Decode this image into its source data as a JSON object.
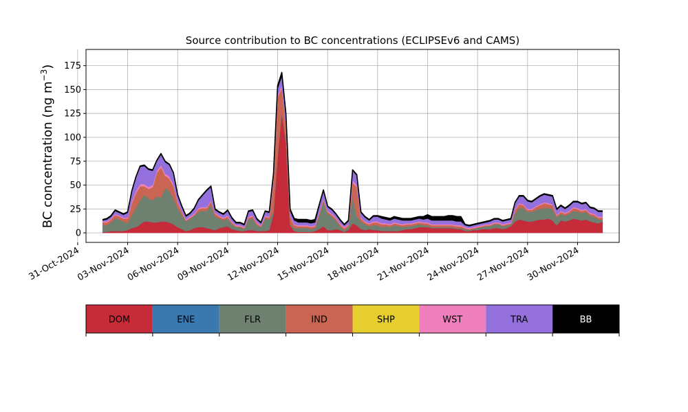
{
  "chart_data": {
    "type": "area",
    "title": "Source contribution to BC concentrations (ECLIPSEv6 and CAMS)",
    "xlabel": "",
    "ylabel": "BC concentration (ng m",
    "ylabel_superscript": "−3",
    "ylabel_suffix": ")",
    "xlim": [
      "2024-10-31T12:00",
      "2024-12-02T12:00"
    ],
    "ylim": [
      -10,
      192
    ],
    "y_ticks": [
      0,
      25,
      50,
      75,
      100,
      125,
      150,
      175
    ],
    "x_ticks": [
      "31-Oct-2024",
      "03-Nov-2024",
      "06-Nov-2024",
      "09-Nov-2024",
      "12-Nov-2024",
      "15-Nov-2024",
      "18-Nov-2024",
      "21-Nov-2024",
      "24-Nov-2024",
      "27-Nov-2024",
      "30-Nov-2024"
    ],
    "grid": true,
    "stacked": true,
    "legend_placement": "below",
    "x": [
      "2024-11-01T12:00",
      "2024-11-01T18:00",
      "2024-11-02T00:00",
      "2024-11-02T06:00",
      "2024-11-02T12:00",
      "2024-11-02T18:00",
      "2024-11-03T00:00",
      "2024-11-03T06:00",
      "2024-11-03T12:00",
      "2024-11-03T18:00",
      "2024-11-04T00:00",
      "2024-11-04T06:00",
      "2024-11-04T12:00",
      "2024-11-04T18:00",
      "2024-11-05T00:00",
      "2024-11-05T06:00",
      "2024-11-05T12:00",
      "2024-11-05T18:00",
      "2024-11-06T00:00",
      "2024-11-06T06:00",
      "2024-11-06T12:00",
      "2024-11-06T18:00",
      "2024-11-07T00:00",
      "2024-11-07T06:00",
      "2024-11-07T12:00",
      "2024-11-07T18:00",
      "2024-11-08T00:00",
      "2024-11-08T06:00",
      "2024-11-08T12:00",
      "2024-11-08T18:00",
      "2024-11-09T00:00",
      "2024-11-09T06:00",
      "2024-11-09T12:00",
      "2024-11-09T18:00",
      "2024-11-10T00:00",
      "2024-11-10T06:00",
      "2024-11-10T12:00",
      "2024-11-10T18:00",
      "2024-11-11T00:00",
      "2024-11-11T06:00",
      "2024-11-11T12:00",
      "2024-11-11T18:00",
      "2024-11-12T00:00",
      "2024-11-12T06:00",
      "2024-11-12T12:00",
      "2024-11-12T18:00",
      "2024-11-13T00:00",
      "2024-11-13T06:00",
      "2024-11-13T12:00",
      "2024-11-13T18:00",
      "2024-11-14T00:00",
      "2024-11-14T06:00",
      "2024-11-14T12:00",
      "2024-11-14T18:00",
      "2024-11-15T00:00",
      "2024-11-15T06:00",
      "2024-11-15T12:00",
      "2024-11-15T18:00",
      "2024-11-16T00:00",
      "2024-11-16T06:00",
      "2024-11-16T12:00",
      "2024-11-16T18:00",
      "2024-11-17T00:00",
      "2024-11-17T06:00",
      "2024-11-17T12:00",
      "2024-11-17T18:00",
      "2024-11-18T00:00",
      "2024-11-18T06:00",
      "2024-11-18T12:00",
      "2024-11-18T18:00",
      "2024-11-19T00:00",
      "2024-11-19T06:00",
      "2024-11-19T12:00",
      "2024-11-19T18:00",
      "2024-11-20T00:00",
      "2024-11-20T06:00",
      "2024-11-20T12:00",
      "2024-11-20T18:00",
      "2024-11-21T00:00",
      "2024-11-21T06:00",
      "2024-11-21T12:00",
      "2024-11-21T18:00",
      "2024-11-22T00:00",
      "2024-11-22T06:00",
      "2024-11-22T12:00",
      "2024-11-22T18:00",
      "2024-11-23T00:00",
      "2024-11-23T06:00",
      "2024-11-23T12:00",
      "2024-11-23T18:00",
      "2024-11-24T00:00",
      "2024-11-24T06:00",
      "2024-11-24T12:00",
      "2024-11-24T18:00",
      "2024-11-25T00:00",
      "2024-11-25T06:00",
      "2024-11-25T12:00",
      "2024-11-25T18:00",
      "2024-11-26T00:00",
      "2024-11-26T06:00",
      "2024-11-26T12:00",
      "2024-11-26T18:00",
      "2024-11-27T00:00",
      "2024-11-27T06:00",
      "2024-11-27T12:00",
      "2024-11-27T18:00",
      "2024-11-28T00:00",
      "2024-11-28T06:00",
      "2024-11-28T12:00",
      "2024-11-28T18:00",
      "2024-11-29T00:00",
      "2024-11-29T06:00",
      "2024-11-29T12:00",
      "2024-11-29T18:00",
      "2024-11-30T00:00",
      "2024-11-30T06:00",
      "2024-11-30T12:00",
      "2024-11-30T18:00",
      "2024-12-01T00:00",
      "2024-12-01T06:00",
      "2024-12-01T12:00"
    ],
    "series": [
      {
        "name": "DOM",
        "color": "#C62B3A",
        "values": [
          1,
          1,
          2,
          2,
          2,
          2,
          3,
          5,
          6,
          9,
          12,
          12,
          11,
          11,
          12,
          12,
          11,
          9,
          6,
          4,
          2,
          3,
          5,
          6,
          6,
          5,
          4,
          3,
          5,
          6,
          7,
          4,
          3,
          2,
          2,
          3,
          3,
          2,
          2,
          2,
          3,
          20,
          80,
          125,
          95,
          8,
          2,
          1,
          1,
          1,
          1,
          2,
          4,
          7,
          3,
          3,
          4,
          3,
          1,
          3,
          10,
          8,
          4,
          3,
          4,
          3,
          3,
          2,
          2,
          2,
          2,
          2,
          3,
          4,
          4,
          5,
          6,
          6,
          6,
          5,
          5,
          5,
          5,
          5,
          5,
          4,
          4,
          2,
          2,
          3,
          3,
          4,
          4,
          4,
          5,
          5,
          4,
          5,
          7,
          12,
          14,
          13,
          12,
          12,
          13,
          14,
          14,
          15,
          13,
          8,
          13,
          12,
          13,
          15,
          14,
          13,
          14,
          12,
          11,
          10,
          12
        ]
      },
      {
        "name": "ENE",
        "color": "#3A78B0",
        "values": [
          0,
          0,
          0,
          0,
          0,
          0,
          0,
          0,
          0,
          0,
          0,
          0,
          0,
          0,
          0,
          0,
          0,
          0,
          0,
          0,
          0,
          0,
          0,
          0,
          0,
          0,
          0,
          0,
          0,
          0,
          0,
          0,
          0,
          0,
          0,
          0,
          0,
          0,
          0,
          0,
          0,
          0,
          0,
          0,
          0,
          0,
          0,
          0,
          0,
          0,
          0,
          0,
          0,
          0,
          0,
          0,
          0,
          0,
          0,
          0,
          0,
          0,
          0,
          0,
          0,
          0,
          0,
          0,
          0,
          0,
          0,
          0,
          0,
          0,
          0,
          0,
          0,
          0,
          0,
          0,
          0,
          0,
          0,
          0,
          0,
          0,
          0,
          0,
          0,
          0,
          0,
          0,
          0,
          0,
          0,
          0,
          0,
          0,
          0,
          0,
          0,
          0,
          0,
          0,
          0,
          0,
          0,
          0,
          0,
          0,
          0,
          0,
          0,
          0,
          0,
          0,
          0,
          0,
          0,
          0,
          0
        ]
      },
      {
        "name": "FLR",
        "color": "#6E8070",
        "values": [
          7,
          7,
          9,
          13,
          12,
          10,
          7,
          14,
          20,
          25,
          28,
          24,
          23,
          27,
          25,
          35,
          33,
          27,
          20,
          15,
          10,
          12,
          13,
          16,
          17,
          18,
          25,
          14,
          10,
          7,
          8,
          5,
          3,
          4,
          2,
          11,
          12,
          6,
          4,
          13,
          11,
          3,
          2,
          2,
          2,
          1,
          3,
          4,
          4,
          4,
          3,
          3,
          14,
          26,
          17,
          14,
          9,
          4,
          2,
          3,
          28,
          10,
          8,
          6,
          3,
          5,
          5,
          4,
          5,
          4,
          6,
          5,
          3,
          3,
          3,
          3,
          3,
          2,
          2,
          1,
          1,
          1,
          1,
          1,
          1,
          1,
          1,
          2,
          1,
          1,
          2,
          2,
          3,
          3,
          4,
          4,
          3,
          3,
          2,
          8,
          12,
          13,
          10,
          10,
          11,
          11,
          12,
          11,
          12,
          8,
          7,
          6,
          7,
          8,
          8,
          8,
          8,
          6,
          6,
          4,
          2
        ]
      },
      {
        "name": "IND",
        "color": "#C96552",
        "values": [
          3,
          3,
          3,
          4,
          3,
          3,
          5,
          12,
          16,
          15,
          9,
          10,
          14,
          25,
          32,
          13,
          13,
          13,
          6,
          3,
          1,
          1,
          1,
          3,
          3,
          3,
          4,
          3,
          2,
          2,
          2,
          2,
          1,
          1,
          1,
          2,
          2,
          2,
          1,
          2,
          2,
          30,
          60,
          25,
          15,
          8,
          3,
          2,
          2,
          2,
          2,
          2,
          3,
          2,
          2,
          2,
          2,
          2,
          2,
          2,
          15,
          30,
          3,
          2,
          2,
          3,
          3,
          3,
          2,
          2,
          2,
          2,
          2,
          2,
          2,
          2,
          2,
          2,
          2,
          2,
          2,
          2,
          2,
          2,
          2,
          2,
          2,
          1,
          1,
          1,
          1,
          1,
          1,
          1,
          1,
          1,
          1,
          1,
          1,
          4,
          4,
          3,
          2,
          2,
          3,
          4,
          5,
          4,
          4,
          2,
          2,
          2,
          2,
          3,
          3,
          2,
          2,
          2,
          2,
          2,
          2
        ]
      },
      {
        "name": "SHP",
        "color": "#E6CE2F",
        "values": [
          0,
          0,
          0,
          0,
          0,
          0,
          0,
          0,
          0,
          0,
          0,
          0,
          0,
          0,
          0,
          0,
          0,
          0,
          0,
          0,
          0,
          0,
          0,
          0,
          0,
          0,
          0,
          0,
          0,
          0,
          0,
          0,
          0,
          0,
          0,
          0,
          0,
          0,
          0,
          0,
          0,
          0,
          0,
          0,
          0,
          0,
          0,
          0,
          0,
          0,
          0,
          0,
          0,
          0,
          0,
          0,
          0,
          0,
          0,
          0,
          0,
          0,
          0,
          0,
          0,
          0,
          0,
          0,
          0,
          0,
          0,
          0,
          0,
          0,
          0,
          0,
          0,
          0,
          0,
          0,
          0,
          0,
          0,
          0,
          0,
          0,
          0,
          0,
          0,
          0,
          0,
          0,
          0,
          0,
          0,
          0,
          0,
          0,
          0,
          0,
          0,
          0,
          0,
          0,
          0,
          0,
          0,
          0,
          0,
          0,
          0,
          0,
          0,
          0,
          0,
          0,
          0,
          0,
          0,
          0,
          0
        ]
      },
      {
        "name": "WST",
        "color": "#F07FBD",
        "values": [
          1,
          1,
          1,
          1,
          1,
          1,
          1,
          2,
          2,
          2,
          2,
          2,
          2,
          2,
          2,
          2,
          2,
          2,
          1,
          1,
          1,
          1,
          1,
          1,
          1,
          1,
          1,
          1,
          1,
          1,
          1,
          1,
          1,
          1,
          1,
          1,
          1,
          1,
          1,
          1,
          1,
          2,
          2,
          2,
          2,
          1,
          1,
          1,
          1,
          1,
          1,
          1,
          1,
          1,
          1,
          1,
          1,
          1,
          1,
          1,
          2,
          2,
          1,
          1,
          1,
          1,
          1,
          1,
          1,
          1,
          1,
          1,
          1,
          1,
          1,
          1,
          1,
          1,
          1,
          1,
          1,
          1,
          1,
          1,
          1,
          1,
          1,
          1,
          1,
          1,
          1,
          1,
          1,
          1,
          1,
          1,
          1,
          1,
          1,
          1,
          1,
          1,
          1,
          1,
          1,
          1,
          1,
          1,
          1,
          1,
          1,
          1,
          1,
          1,
          1,
          1,
          1,
          1,
          1,
          1,
          1
        ]
      },
      {
        "name": "TRA",
        "color": "#9370DB",
        "values": [
          1,
          2,
          2,
          3,
          3,
          3,
          5,
          10,
          14,
          18,
          19,
          18,
          15,
          10,
          11,
          12,
          12,
          11,
          6,
          4,
          3,
          3,
          5,
          8,
          12,
          17,
          14,
          3,
          3,
          3,
          5,
          3,
          2,
          2,
          2,
          5,
          5,
          3,
          2,
          4,
          4,
          5,
          7,
          10,
          8,
          5,
          4,
          3,
          3,
          3,
          3,
          3,
          6,
          8,
          4,
          4,
          3,
          3,
          2,
          3,
          10,
          10,
          5,
          4,
          3,
          5,
          5,
          5,
          4,
          4,
          4,
          4,
          4,
          3,
          3,
          3,
          3,
          3,
          4,
          4,
          4,
          4,
          4,
          4,
          4,
          4,
          4,
          2,
          2,
          2,
          2,
          2,
          2,
          3,
          3,
          3,
          3,
          3,
          3,
          6,
          7,
          8,
          8,
          7,
          7,
          8,
          8,
          8,
          8,
          5,
          5,
          4,
          5,
          5,
          6,
          6,
          6,
          5,
          5,
          5,
          5
        ]
      },
      {
        "name": "BB",
        "color": "#000000",
        "values": [
          1,
          1,
          1,
          1,
          1,
          1,
          1,
          1,
          1,
          1,
          1,
          1,
          1,
          1,
          1,
          1,
          1,
          1,
          1,
          1,
          1,
          1,
          1,
          1,
          1,
          1,
          1,
          1,
          1,
          1,
          1,
          1,
          1,
          1,
          1,
          1,
          1,
          1,
          1,
          1,
          1,
          2,
          3,
          4,
          3,
          2,
          2,
          3,
          3,
          3,
          3,
          3,
          2,
          1,
          1,
          1,
          1,
          1,
          1,
          1,
          1,
          1,
          1,
          1,
          1,
          1,
          1,
          2,
          2,
          2,
          2,
          2,
          2,
          2,
          2,
          2,
          2,
          3,
          4,
          4,
          4,
          4,
          4,
          5,
          5,
          5,
          5,
          1,
          1,
          1,
          1,
          1,
          1,
          1,
          1,
          1,
          1,
          1,
          1,
          1,
          1,
          1,
          1,
          1,
          1,
          1,
          1,
          1,
          1,
          1,
          1,
          1,
          1,
          1,
          1,
          1,
          1,
          1,
          1,
          1,
          1
        ]
      }
    ]
  }
}
